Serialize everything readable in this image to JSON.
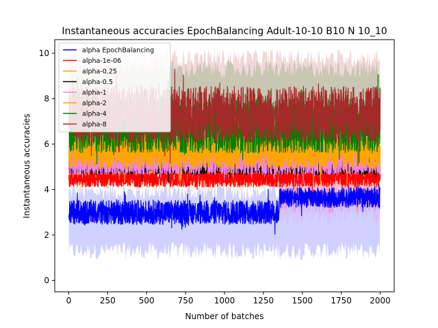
{
  "chart_data": {
    "type": "line",
    "title": "Instantaneous accuracies EpochBalancing Adult-10-10 B10 N 10_10",
    "xlabel": "Number of batches",
    "ylabel": "Instantaneous accuracies",
    "xlim": [
      -90,
      2090
    ],
    "ylim": [
      -0.5,
      10.6
    ],
    "xticks": [
      "0",
      "250",
      "500",
      "750",
      "1000",
      "1250",
      "1500",
      "1750",
      "2000"
    ],
    "yticks": [
      "0",
      "2",
      "4",
      "6",
      "8",
      "10"
    ],
    "grid": false,
    "legend_placement": "top-left",
    "n_points": 2001,
    "series": [
      {
        "name": "alpha EpochBalancing",
        "color": "#0000ff",
        "shade_color": "#0000ff",
        "segments": [
          {
            "x0": 0,
            "x1": 1350,
            "mean": 3.0,
            "amp": 0.55
          },
          {
            "x0": 1350,
            "x1": 2000,
            "mean": 3.65,
            "amp": 0.45
          }
        ],
        "shade_low": 1.3,
        "shade_high": 3.9,
        "shade_start": 0
      },
      {
        "name": "alpha-1e-06",
        "color": "#ff0000",
        "shade_color": "#ff0000",
        "mean": 4.55,
        "amp": 0.45,
        "shade_low": 3.3,
        "shade_high": 5.2,
        "shade_start": 1350
      },
      {
        "name": "alpha-0.25",
        "color": "#ffa500",
        "shade_color": "#ffa500",
        "mean": 5.25,
        "amp": 0.55,
        "shade_low": 4.2,
        "shade_high": 6.2,
        "shade_start": 0
      },
      {
        "name": "alpha-0.5",
        "color": "#000000",
        "shade_color": "#000000",
        "mean": 5.05,
        "amp": 0.4,
        "shade_low": 4.4,
        "shade_high": 5.6,
        "shade_start": 0
      },
      {
        "name": "alpha-1",
        "color": "#ee82ee",
        "shade_color": "#ee82ee",
        "mean": 5.2,
        "amp": 0.55,
        "shade_low": 2.8,
        "shade_high": 6.0,
        "shade_start": 1350
      },
      {
        "name": "alpha-2",
        "color": "#ffa500",
        "shade_color": "#ffa500",
        "mean": 5.7,
        "amp": 0.8,
        "shade_low": 4.8,
        "shade_high": 7.0,
        "shade_start": 0
      },
      {
        "name": "alpha-4",
        "color": "#008000",
        "shade_color": "#008000",
        "mean": 6.8,
        "amp": 1.2,
        "shade_low": 5.5,
        "shade_high": 9.3,
        "shade_start": 0
      },
      {
        "name": "alpha-8",
        "color": "#a52a2a",
        "shade_color": "#a52a2a",
        "mean": 7.3,
        "amp": 1.25,
        "shade_low": 5.2,
        "shade_high": 9.8,
        "shade_start": 0
      }
    ]
  }
}
